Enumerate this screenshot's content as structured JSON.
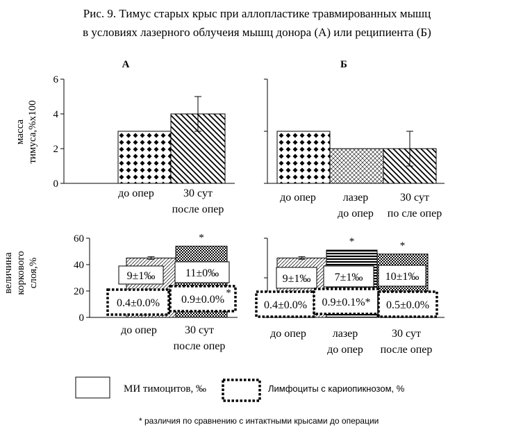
{
  "figure": {
    "title_line1": "Рис. 9. Тимус  старых крыс при аллопластике травмированных мышц",
    "title_line2": "в условиях лазерного облучеия мышц донора (А) или реципиента (Б)",
    "panel_a_label": "А",
    "panel_b_label": "Б",
    "legend_mi_label": "МИ тимоцитов, ‰",
    "legend_lymph_label": "Лимфоциты с кариопикнозом, %",
    "footnote": "* различия по сравнению с интактными крысами до операции",
    "significance_mark": "*"
  },
  "chart_data": [
    {
      "id": "mass-A",
      "type": "bar",
      "ylabel": [
        "масса",
        "тимуса,%х100"
      ],
      "ylim": [
        0,
        6
      ],
      "yticks": [
        0,
        2,
        4,
        6
      ],
      "categories": [
        [
          "до опер"
        ],
        [
          "30 сут",
          "после опер"
        ]
      ],
      "values": [
        3,
        4
      ],
      "errors": [
        0,
        1
      ],
      "patterns": [
        "diamond",
        "diag"
      ]
    },
    {
      "id": "mass-B",
      "type": "bar",
      "ylim": [
        0,
        6
      ],
      "categories": [
        [
          "до  опер"
        ],
        [
          "лазер",
          "до опер"
        ],
        [
          "30 сут",
          "по сле опер"
        ]
      ],
      "values": [
        3,
        2,
        2
      ],
      "errors": [
        0,
        0,
        1
      ],
      "patterns": [
        "diamond",
        "cross",
        "diag"
      ]
    },
    {
      "id": "cortex-A",
      "type": "bar",
      "ylabel": [
        "величина",
        "коркового",
        "слоя,%"
      ],
      "ylim": [
        0,
        60
      ],
      "yticks": [
        0,
        20,
        40,
        60
      ],
      "categories": [
        [
          "до опер"
        ],
        [
          "30 сут",
          "после опер"
        ]
      ],
      "values": [
        45,
        54
      ],
      "errors": [
        1,
        0
      ],
      "patterns": [
        "smalldiag",
        "checker"
      ],
      "significant": [
        false,
        true
      ],
      "mi_labels": [
        "9±1‰",
        "11±0‰"
      ],
      "lymph_labels": [
        "0.4±0.0%",
        "0.9±0.0%"
      ],
      "lymph_marks": [
        "",
        "*"
      ]
    },
    {
      "id": "cortex-B",
      "type": "bar",
      "ylim": [
        0,
        60
      ],
      "categories": [
        [
          "до опер"
        ],
        [
          "лазер",
          "до опер"
        ],
        [
          "30 сут",
          "после опер"
        ]
      ],
      "values": [
        45,
        51,
        48
      ],
      "errors": [
        1,
        0,
        0
      ],
      "patterns": [
        "smalldiag",
        "hlines",
        "checker"
      ],
      "significant": [
        false,
        true,
        true
      ],
      "mi_labels": [
        "9±1‰",
        "7±1‰",
        "10±1‰"
      ],
      "lymph_labels": [
        "0.4±0.0%",
        "0.9±0.1%*",
        "0.5±0.0%"
      ],
      "lymph_marks": [
        "",
        "",
        ""
      ]
    }
  ]
}
